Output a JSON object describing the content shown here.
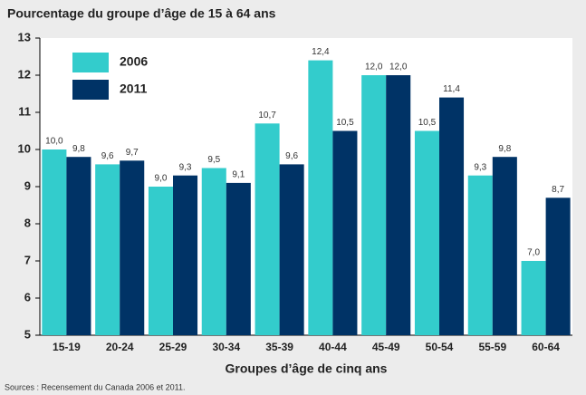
{
  "chart_data": {
    "type": "bar",
    "title": "Pourcentage du  groupe d’âge de 15 à 64 ans",
    "xlabel": "Groupes d’âge de cinq ans",
    "source": "Sources : Recensement du Canada 2006 et 2011.",
    "categories": [
      "15-19",
      "20-24",
      "25-29",
      "30-34",
      "35-39",
      "40-44",
      "45-49",
      "50-54",
      "55-59",
      "60-64"
    ],
    "series": [
      {
        "name": "2006",
        "color": "#33cccc",
        "values": [
          10.0,
          9.6,
          9.0,
          9.5,
          10.7,
          12.4,
          12.0,
          10.5,
          9.3,
          7.0
        ],
        "value_labels": [
          "10,0",
          "9,6",
          "9,0",
          "9,5",
          "10,7",
          "12,4",
          "12,0",
          "10,5",
          "9,3",
          "7,0"
        ]
      },
      {
        "name": "2011",
        "color": "#003366",
        "values": [
          9.8,
          9.7,
          9.3,
          9.1,
          9.6,
          10.5,
          12.0,
          11.4,
          9.8,
          8.7
        ],
        "value_labels": [
          "9,8",
          "9,7",
          "9,3",
          "9,1",
          "9,6",
          "10,5",
          "12,0",
          "11,4",
          "9,8",
          "8,7"
        ]
      }
    ],
    "ylim": [
      5,
      13
    ],
    "yticks": [
      5,
      6,
      7,
      8,
      9,
      10,
      11,
      12,
      13
    ],
    "legend": "upper left"
  }
}
